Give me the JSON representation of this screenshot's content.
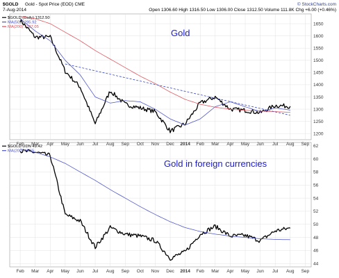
{
  "header": {
    "symbol": "$GOLD",
    "desc": "Gold - Spot Price (EOD)  CME",
    "date": "7-Aug-2014",
    "quote": "Open 1306.60  High 1316.50  Low 1306.00  Close 1312.50  Volume 111.8K  Chg +6.00 (+0.46%)",
    "watermark": "© StockCharts.com"
  },
  "colors": {
    "price": "#000000",
    "ma50": "#4b52c8",
    "ma200": "#e0505a",
    "trend": "#3343c8",
    "annotation": "#1a1adc",
    "grid": "#d9d9d9"
  },
  "x_ticks": [
    "Feb",
    "Mar",
    "Apr",
    "May",
    "Jun",
    "Jul",
    "Aug",
    "Sep",
    "Oct",
    "Nov",
    "Dec",
    "2014",
    "Feb",
    "Mar",
    "Apr",
    "May",
    "Jun",
    "Jul",
    "Aug",
    "Sep"
  ],
  "chart_data": [
    {
      "type": "line",
      "annotation": "Gold",
      "legend": [
        "$GOLD (Daily) 1312.50",
        "MA(50) 1295.92",
        "MA(200) 1287.05"
      ],
      "y_ticks": [
        1200,
        1250,
        1300,
        1350,
        1400,
        1450,
        1500,
        1550,
        1600,
        1650
      ],
      "ylim": [
        1175,
        1690
      ],
      "x": [
        "2013-02",
        "2013-03",
        "2013-04",
        "2013-05",
        "2013-06",
        "2013-07",
        "2013-08",
        "2013-09",
        "2013-10",
        "2013-11",
        "2013-12",
        "2014-01",
        "2014-02",
        "2014-03",
        "2014-04",
        "2014-05",
        "2014-06",
        "2014-07",
        "2014-08"
      ],
      "series": [
        {
          "name": "$GOLD (Daily)",
          "values": [
            1665,
            1595,
            1595,
            1455,
            1390,
            1240,
            1375,
            1320,
            1305,
            1290,
            1210,
            1240,
            1325,
            1350,
            1300,
            1295,
            1285,
            1315,
            1312
          ]
        },
        {
          "name": "MA(50)",
          "values": [
            1670,
            1620,
            1580,
            1500,
            1440,
            1350,
            1325,
            1335,
            1330,
            1300,
            1260,
            1235,
            1260,
            1310,
            1330,
            1310,
            1290,
            1305,
            1296
          ]
        },
        {
          "name": "MA(200)",
          "values": [
            1680,
            1670,
            1650,
            1615,
            1580,
            1540,
            1505,
            1470,
            1435,
            1405,
            1370,
            1340,
            1320,
            1308,
            1300,
            1295,
            1292,
            1290,
            1287
          ]
        }
      ],
      "trendline": {
        "x": [
          "2013-05",
          "2014-08"
        ],
        "values": [
          1485,
          1275
        ]
      }
    },
    {
      "type": "line",
      "annotation": "Gold in foreign currencies",
      "legend": [
        "$GOLD:UDN 49.42",
        "MA(200) 47.65"
      ],
      "y_ticks": [
        44,
        46,
        48,
        50,
        52,
        54,
        56,
        58,
        60,
        62
      ],
      "ylim": [
        43.5,
        62.5
      ],
      "x": [
        "2013-02",
        "2013-03",
        "2013-04",
        "2013-05",
        "2013-06",
        "2013-07",
        "2013-08",
        "2013-09",
        "2013-10",
        "2013-11",
        "2013-12",
        "2014-01",
        "2014-02",
        "2014-03",
        "2014-04",
        "2014-05",
        "2014-06",
        "2014-07",
        "2014-08"
      ],
      "series": [
        {
          "name": "$GOLD:UDN",
          "values": [
            61.2,
            61.0,
            60.5,
            51.5,
            50.5,
            46.5,
            49.5,
            48.5,
            48.2,
            47.5,
            44.8,
            45.8,
            48.5,
            49.7,
            48.2,
            48.3,
            47.5,
            49.0,
            49.42
          ]
        },
        {
          "name": "MA(200)",
          "values": [
            61.5,
            61.0,
            60.3,
            59.3,
            58.0,
            56.7,
            55.3,
            54.0,
            52.7,
            51.5,
            50.4,
            49.5,
            48.9,
            48.5,
            48.2,
            48.0,
            47.8,
            47.7,
            47.65
          ]
        }
      ]
    }
  ]
}
